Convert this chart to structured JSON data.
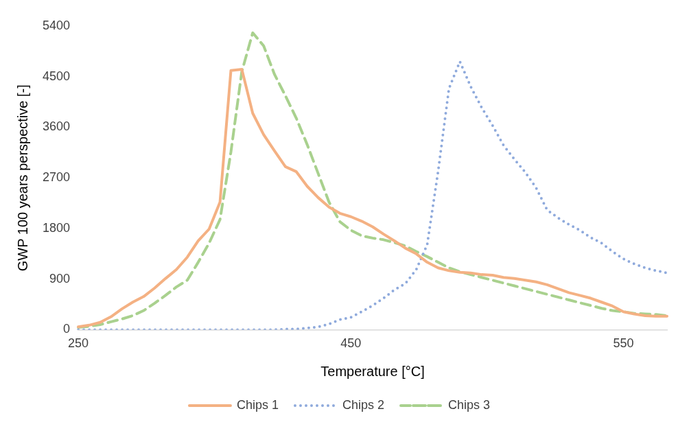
{
  "chart_data": {
    "type": "line",
    "xlabel": "Temperature [°C]",
    "ylabel": "GWP 100 years perspective [-]",
    "categories": [
      "250",
      null,
      null,
      null,
      null,
      null,
      null,
      null,
      null,
      null,
      null,
      null,
      null,
      null,
      null,
      null,
      null,
      null,
      null,
      null,
      null,
      null,
      null,
      null,
      null,
      "450",
      null,
      null,
      null,
      null,
      null,
      null,
      null,
      null,
      null,
      null,
      null,
      null,
      null,
      null,
      null,
      null,
      null,
      null,
      null,
      null,
      null,
      null,
      null,
      null,
      "550",
      null,
      null,
      null,
      null
    ],
    "ylim": [
      0,
      5400
    ],
    "yticks": [
      0,
      900,
      1800,
      2700,
      3600,
      4500,
      5400
    ],
    "grid": false,
    "legend": "bottom",
    "marker": "none",
    "series": [
      {
        "name": "Chips 1",
        "color": "#f4b183",
        "line_style": "solid",
        "values": [
          50,
          80,
          130,
          230,
          370,
          490,
          590,
          740,
          910,
          1070,
          1290,
          1580,
          1790,
          2270,
          4610,
          4630,
          3850,
          3470,
          3180,
          2900,
          2810,
          2550,
          2350,
          2180,
          2070,
          2010,
          1930,
          1830,
          1700,
          1580,
          1450,
          1350,
          1200,
          1100,
          1050,
          1020,
          1010,
          980,
          970,
          930,
          910,
          880,
          850,
          800,
          730,
          660,
          610,
          560,
          490,
          420,
          320,
          280,
          250,
          240,
          240
        ]
      },
      {
        "name": "Chips 2",
        "color": "#8faadc",
        "line_style": "dotted",
        "values": [
          0,
          0,
          0,
          0,
          0,
          0,
          0,
          0,
          0,
          0,
          0,
          0,
          0,
          0,
          0,
          0,
          0,
          0,
          0,
          10,
          10,
          30,
          50,
          100,
          180,
          220,
          320,
          430,
          560,
          710,
          820,
          1070,
          1510,
          2810,
          4290,
          4770,
          4320,
          3950,
          3630,
          3280,
          3030,
          2800,
          2520,
          2130,
          1990,
          1870,
          1770,
          1640,
          1540,
          1390,
          1260,
          1170,
          1100,
          1050,
          1010
        ]
      },
      {
        "name": "Chips 3",
        "color": "#a9d18e",
        "line_style": "dashed",
        "values": [
          40,
          60,
          90,
          140,
          190,
          250,
          340,
          470,
          610,
          760,
          880,
          1200,
          1540,
          1960,
          3160,
          4590,
          5280,
          5050,
          4540,
          4160,
          3760,
          3290,
          2780,
          2270,
          1920,
          1770,
          1670,
          1630,
          1600,
          1550,
          1490,
          1390,
          1300,
          1200,
          1100,
          1030,
          980,
          930,
          880,
          830,
          780,
          730,
          680,
          630,
          580,
          530,
          480,
          430,
          380,
          340,
          320,
          290,
          280,
          270,
          250
        ]
      }
    ]
  }
}
